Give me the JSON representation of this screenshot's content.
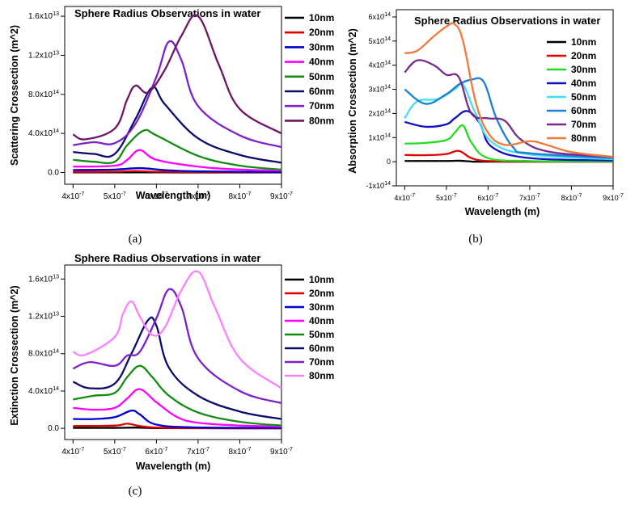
{
  "panel_captions": [
    "(a)",
    "(b)",
    "(c)"
  ],
  "chart_data": [
    {
      "type": "line",
      "title": "Sphere Radius Observations in water",
      "xlabel": "Wavelength (m)",
      "ylabel": "Scattering Crossection (m^2)",
      "xlim": [
        3.8e-07,
        9e-07
      ],
      "ylim": [
        -1.2e-14,
        1.7e-13
      ],
      "x_ticks": [
        "4x10-7",
        "5x10-7",
        "6x10-7",
        "7x10-7",
        "8x10-7",
        "9x10-7"
      ],
      "y_ticks": [
        "0.0",
        "4.0x10-14",
        "8.0x10-14",
        "1.2x10-13",
        "1.6x10-13"
      ],
      "x_tick_values": [
        4e-07,
        5e-07,
        6e-07,
        7e-07,
        8e-07,
        9e-07
      ],
      "y_tick_values": [
        0,
        4e-14,
        8e-14,
        1.2e-13,
        1.6e-13
      ],
      "legend_placement": "top-right",
      "series": [
        {
          "name": "10nm",
          "color": "#000000",
          "x": [
            4e-07,
            5e-07,
            5.5e-07,
            6e-07,
            7e-07,
            9e-07
          ],
          "y": [
            1e-16,
            1e-16,
            1.5e-16,
            1e-16,
            5e-17,
            2e-17
          ]
        },
        {
          "name": "20nm",
          "color": "#e00000",
          "x": [
            4e-07,
            5e-07,
            5.5e-07,
            6e-07,
            7e-07,
            9e-07
          ],
          "y": [
            6e-16,
            8e-16,
            1.5e-15,
            8e-16,
            4e-16,
            2e-16
          ]
        },
        {
          "name": "30nm",
          "color": "#0000cc",
          "x": [
            4e-07,
            5e-07,
            5.6e-07,
            6.2e-07,
            7e-07,
            9e-07
          ],
          "y": [
            2.6e-15,
            3e-15,
            4.5e-15,
            2.5e-15,
            1.2e-15,
            5e-16
          ]
        },
        {
          "name": "40nm",
          "color": "#ff00ff",
          "x": [
            4e-07,
            5e-07,
            5.3e-07,
            5.6e-07,
            6e-07,
            7e-07,
            8e-07,
            9e-07
          ],
          "y": [
            6e-15,
            7e-15,
            1.3e-14,
            2.3e-14,
            1.3e-14,
            6e-15,
            3e-15,
            2e-15
          ]
        },
        {
          "name": "50nm",
          "color": "#138c13",
          "x": [
            4e-07,
            4.5e-07,
            5e-07,
            5.3e-07,
            5.7e-07,
            6e-07,
            7e-07,
            8e-07,
            9e-07
          ],
          "y": [
            1.3e-14,
            1.1e-14,
            1.1e-14,
            2.8e-14,
            4.3e-14,
            3.8e-14,
            1.7e-14,
            7e-15,
            3e-15
          ]
        },
        {
          "name": "60nm",
          "color": "#0a0a6e",
          "x": [
            4e-07,
            4.5e-07,
            5e-07,
            5.5e-07,
            5.9e-07,
            6.2e-07,
            7e-07,
            8e-07,
            9e-07
          ],
          "y": [
            2.1e-14,
            1.9e-14,
            1.9e-14,
            5.5e-14,
            8.7e-14,
            7e-14,
            3.5e-14,
            1.8e-14,
            1e-14
          ]
        },
        {
          "name": "70nm",
          "color": "#7b22c8",
          "x": [
            4e-07,
            4.5e-07,
            5e-07,
            5.5e-07,
            6e-07,
            6.3e-07,
            6.6e-07,
            7e-07,
            8e-07,
            9e-07
          ],
          "y": [
            2.8e-14,
            3.1e-14,
            3e-14,
            5e-14,
            9.8e-14,
            1.34e-13,
            1.15e-13,
            6.8e-14,
            3.8e-14,
            2.6e-14
          ]
        },
        {
          "name": "80nm",
          "color": "#6e1566",
          "x": [
            4e-07,
            4.3e-07,
            5e-07,
            5.3e-07,
            5.5e-07,
            5.8e-07,
            6.2e-07,
            6.6e-07,
            7e-07,
            7.5e-07,
            8e-07,
            9e-07
          ],
          "y": [
            3.9e-14,
            3.4e-14,
            4.5e-14,
            7.5e-14,
            8.9e-14,
            8.2e-14,
            1.05e-13,
            1.4e-13,
            1.6e-13,
            1.1e-13,
            6.5e-14,
            4e-14
          ]
        }
      ]
    },
    {
      "type": "line",
      "title": "Sphere Radius Observations in water",
      "xlabel": "Wavelength (m)",
      "ylabel": "Absorption Crossection (m^2)",
      "xlim": [
        3.8e-07,
        9e-07
      ],
      "ylim": [
        -1e-14,
        6.3e-14
      ],
      "x_ticks": [
        "4x10-7",
        "5x10-7",
        "6x10-7",
        "7x10-7",
        "8x10-7",
        "9x10-7"
      ],
      "y_ticks": [
        "-1x10-14",
        "0",
        "1x10-14",
        "2x10-14",
        "3x10-14",
        "4x10-14",
        "5x10-14",
        "6x10-14"
      ],
      "x_tick_values": [
        4e-07,
        5e-07,
        6e-07,
        7e-07,
        8e-07,
        9e-07
      ],
      "y_tick_values": [
        -1e-14,
        0,
        1e-14,
        2e-14,
        3e-14,
        4e-14,
        5e-14,
        6e-14
      ],
      "legend_placement": "top-right",
      "series": [
        {
          "name": "10nm",
          "color": "#000000",
          "x": [
            4e-07,
            5e-07,
            5.3e-07,
            5.6e-07,
            6e-07,
            9e-07
          ],
          "y": [
            3e-16,
            3e-16,
            4e-16,
            1e-16,
            0,
            0
          ]
        },
        {
          "name": "20nm",
          "color": "#e00000",
          "x": [
            4e-07,
            4.5e-07,
            5e-07,
            5.3e-07,
            5.6e-07,
            6e-07,
            7e-07,
            9e-07
          ],
          "y": [
            2.8e-15,
            2.7e-15,
            3.2e-15,
            4.5e-15,
            1.5e-15,
            3e-16,
            1e-16,
            0
          ]
        },
        {
          "name": "30nm",
          "color": "#22dd22",
          "x": [
            4e-07,
            4.5e-07,
            5e-07,
            5.2e-07,
            5.4e-07,
            5.6e-07,
            6e-07,
            7e-07,
            9e-07
          ],
          "y": [
            7.5e-15,
            7.8e-15,
            9e-15,
            1.2e-14,
            1.5e-14,
            8e-15,
            1.5e-15,
            3e-16,
            1e-16
          ]
        },
        {
          "name": "40nm",
          "color": "#1010c0",
          "x": [
            4e-07,
            4.5e-07,
            5e-07,
            5.2e-07,
            5.5e-07,
            5.8e-07,
            6.1e-07,
            7e-07,
            9e-07
          ],
          "y": [
            1.65e-14,
            1.45e-14,
            1.55e-14,
            1.8e-14,
            2.1e-14,
            1.6e-14,
            6e-15,
            1.5e-15,
            5e-16
          ]
        },
        {
          "name": "50nm",
          "color": "#44ddf0",
          "x": [
            4e-07,
            4.3e-07,
            4.8e-07,
            5.2e-07,
            5.4e-07,
            5.7e-07,
            6.1e-07,
            7e-07,
            9e-07
          ],
          "y": [
            1.8e-14,
            2.5e-14,
            2.6e-14,
            3e-14,
            3.2e-14,
            2e-14,
            8e-15,
            3e-15,
            1e-15
          ]
        },
        {
          "name": "60nm",
          "color": "#1a7fd6",
          "x": [
            4e-07,
            4.5e-07,
            5e-07,
            5.3e-07,
            5.6e-07,
            5.9e-07,
            6.2e-07,
            6.6e-07,
            7e-07,
            9e-07
          ],
          "y": [
            3e-14,
            2.4e-14,
            2.8e-14,
            3.2e-14,
            3.4e-14,
            3.3e-14,
            1.8e-14,
            6e-15,
            3.5e-15,
            1.5e-15
          ]
        },
        {
          "name": "70nm",
          "color": "#7a2a8a",
          "x": [
            4e-07,
            4.3e-07,
            4.7e-07,
            5e-07,
            5.3e-07,
            5.6e-07,
            6e-07,
            6.4e-07,
            6.8e-07,
            7.5e-07,
            9e-07
          ],
          "y": [
            3.7e-14,
            4.2e-14,
            4e-14,
            3.6e-14,
            3.5e-14,
            2e-14,
            1.8e-14,
            1.7e-14,
            9e-15,
            4e-15,
            2e-15
          ]
        },
        {
          "name": "80nm",
          "color": "#f07a3a",
          "x": [
            4e-07,
            4.3e-07,
            4.7e-07,
            5e-07,
            5.2e-07,
            5.4e-07,
            5.7e-07,
            6e-07,
            6.4e-07,
            7e-07,
            7.4e-07,
            8e-07,
            9e-07
          ],
          "y": [
            4.5e-14,
            4.6e-14,
            5.2e-14,
            5.6e-14,
            5.7e-14,
            5e-14,
            2.5e-14,
            1.2e-14,
            7e-15,
            8.5e-15,
            7e-15,
            4e-15,
            2e-15
          ]
        }
      ]
    },
    {
      "type": "line",
      "title": "Sphere Radius Observations in water",
      "xlabel": "Wavelength (m)",
      "ylabel": "Extinction Crossection (m^2)",
      "xlim": [
        3.8e-07,
        9e-07
      ],
      "ylim": [
        -1.2e-14,
        1.75e-13
      ],
      "x_ticks": [
        "4x10-7",
        "5x10-7",
        "6x10-7",
        "7x10-7",
        "8x10-7",
        "9x10-7"
      ],
      "y_ticks": [
        "0.0",
        "4.0x10-14",
        "8.0x10-14",
        "1.2x10-13",
        "1.6x10-13"
      ],
      "x_tick_values": [
        4e-07,
        5e-07,
        6e-07,
        7e-07,
        8e-07,
        9e-07
      ],
      "y_tick_values": [
        0,
        4e-14,
        8e-14,
        1.2e-13,
        1.6e-13
      ],
      "legend_placement": "top-right",
      "series": [
        {
          "name": "10nm",
          "color": "#000000",
          "x": [
            4e-07,
            5e-07,
            5.5e-07,
            6e-07,
            7e-07,
            9e-07
          ],
          "y": [
            5e-16,
            5e-16,
            8e-16,
            3e-16,
            1e-16,
            0
          ]
        },
        {
          "name": "20nm",
          "color": "#e00000",
          "x": [
            4e-07,
            5e-07,
            5.3e-07,
            5.6e-07,
            6e-07,
            7e-07,
            9e-07
          ],
          "y": [
            2.5e-15,
            3e-15,
            5e-15,
            2.5e-15,
            8e-16,
            3e-16,
            1e-16
          ]
        },
        {
          "name": "30nm",
          "color": "#0000cc",
          "x": [
            4e-07,
            4.5e-07,
            5e-07,
            5.4e-07,
            5.6e-07,
            6e-07,
            7e-07,
            9e-07
          ],
          "y": [
            1e-14,
            1e-14,
            1.2e-14,
            1.9e-14,
            1.5e-14,
            4e-15,
            1e-15,
            5e-16
          ]
        },
        {
          "name": "40nm",
          "color": "#ff00ff",
          "x": [
            4e-07,
            4.5e-07,
            5e-07,
            5.3e-07,
            5.6e-07,
            6e-07,
            6.5e-07,
            7e-07,
            8e-07,
            9e-07
          ],
          "y": [
            2.2e-14,
            2e-14,
            2.2e-14,
            3.2e-14,
            4.2e-14,
            2.8e-14,
            1.2e-14,
            6e-15,
            3e-15,
            2e-15
          ]
        },
        {
          "name": "50nm",
          "color": "#138c13",
          "x": [
            4e-07,
            4.5e-07,
            5e-07,
            5.3e-07,
            5.6e-07,
            5.9e-07,
            6.3e-07,
            7e-07,
            8e-07,
            9e-07
          ],
          "y": [
            3.1e-14,
            3.5e-14,
            3.8e-14,
            5.5e-14,
            6.7e-14,
            5.5e-14,
            3.5e-14,
            1.7e-14,
            7e-15,
            3e-15
          ]
        },
        {
          "name": "60nm",
          "color": "#0a0a6e",
          "x": [
            4e-07,
            4.4e-07,
            5e-07,
            5.4e-07,
            5.8e-07,
            6e-07,
            6.3e-07,
            7e-07,
            8e-07,
            9e-07
          ],
          "y": [
            5e-14,
            4.3e-14,
            4.8e-14,
            8e-14,
            1.16e-13,
            1.1e-13,
            6.5e-14,
            3.5e-14,
            1.8e-14,
            1e-14
          ]
        },
        {
          "name": "70nm",
          "color": "#7b22c8",
          "x": [
            4e-07,
            4.4e-07,
            5e-07,
            5.3e-07,
            5.6e-07,
            6e-07,
            6.3e-07,
            6.6e-07,
            7e-07,
            8e-07,
            9e-07
          ],
          "y": [
            6.4e-14,
            7.1e-14,
            6.7e-14,
            7.8e-14,
            8.2e-14,
            1.18e-13,
            1.49e-13,
            1.3e-13,
            7.5e-14,
            4e-14,
            2.7e-14
          ]
        },
        {
          "name": "80nm",
          "color": "#ff80ff",
          "x": [
            4e-07,
            4.3e-07,
            5e-07,
            5.2e-07,
            5.4e-07,
            5.6e-07,
            5.9e-07,
            6.2e-07,
            6.6e-07,
            7e-07,
            7.4e-07,
            8e-07,
            9e-07
          ],
          "y": [
            8.2e-14,
            7.9e-14,
            9.8e-14,
            1.23e-13,
            1.36e-13,
            1.2e-13,
            1e-13,
            1.08e-13,
            1.48e-13,
            1.68e-13,
            1.3e-13,
            7.5e-14,
            4.3e-14
          ]
        }
      ]
    }
  ]
}
